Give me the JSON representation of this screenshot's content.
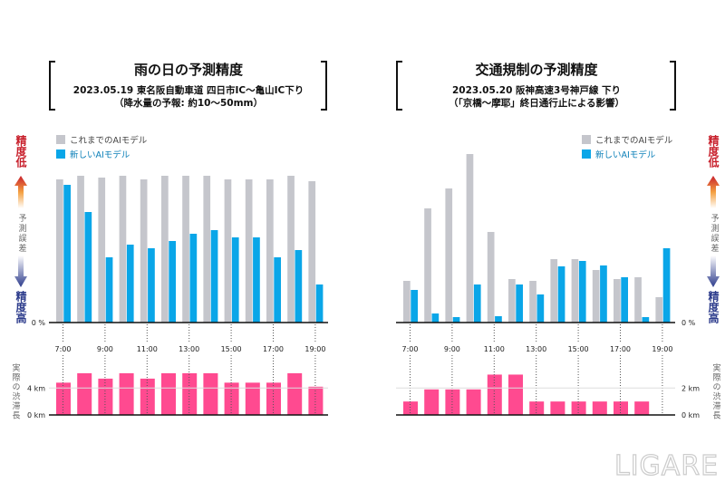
{
  "colors": {
    "old": "#c5c6cc",
    "new": "#0aa6e8",
    "congestion": "#ff4a90",
    "low": "#c8202c",
    "high": "#2d3c8c"
  },
  "side_labels": {
    "low": "精度低",
    "error": "予測誤差",
    "high": "精度高",
    "congestion": "実際の渋滞長"
  },
  "logo": "LIGARE",
  "chart_data": [
    {
      "type": "bar",
      "title": "雨の日の予測精度",
      "subtitle": [
        "2023.05.19 東名阪自動車道 四日市IC〜亀山IC下り",
        "（降水量の予報: 約10〜50mm）"
      ],
      "legend": [
        "これまでのAIモデル",
        "新しいAIモデル"
      ],
      "legend_position": "top-left",
      "categories": [
        "7:00",
        "8:00",
        "9:00",
        "10:00",
        "11:00",
        "12:00",
        "13:00",
        "14:00",
        "15:00",
        "16:00",
        "17:00",
        "18:00",
        "19:00"
      ],
      "tick_labels": [
        "7:00",
        "9:00",
        "11:00",
        "13:00",
        "15:00",
        "17:00",
        "19:00"
      ],
      "y_zero_label": "0 %",
      "series": [
        {
          "name": "これまでのAIモデル",
          "values": [
            79,
            81,
            80,
            81,
            79,
            81,
            81,
            81,
            79,
            79,
            79,
            81,
            78
          ]
        },
        {
          "name": "新しいAIモデル",
          "values": [
            76,
            61,
            36,
            43,
            41,
            45,
            49,
            51,
            47,
            47,
            36,
            40,
            21
          ]
        }
      ],
      "ylim": [
        0,
        100
      ],
      "congestion": {
        "unit": "km",
        "ticks": [
          "0 km",
          "4 km"
        ],
        "tick_values": [
          0,
          4
        ],
        "ylim": [
          0,
          8
        ],
        "values": [
          4.8,
          6.2,
          5.4,
          6.2,
          5.4,
          6.2,
          6.2,
          6.2,
          4.8,
          4.8,
          4.8,
          6.2,
          4.2
        ]
      }
    },
    {
      "type": "bar",
      "title": "交通規制の予測精度",
      "subtitle": [
        "2023.05.20 阪神高速3号神戸線 下り",
        "（「京橋〜摩耶」終日通行止による影響）"
      ],
      "legend": [
        "これまでのAIモデル",
        "新しいAIモデル"
      ],
      "legend_position": "top-right",
      "categories": [
        "7:00",
        "8:00",
        "9:00",
        "10:00",
        "11:00",
        "12:00",
        "13:00",
        "14:00",
        "15:00",
        "16:00",
        "17:00",
        "18:00",
        "19:00"
      ],
      "tick_labels": [
        "7:00",
        "9:00",
        "11:00",
        "13:00",
        "15:00",
        "17:00",
        "19:00"
      ],
      "y_zero_label": "0 %",
      "series": [
        {
          "name": "これまでのAIモデル",
          "values": [
            23,
            63,
            74,
            93,
            50,
            24,
            23,
            35,
            35,
            29,
            24,
            25,
            14
          ]
        },
        {
          "name": "新しいAIモデル",
          "values": [
            18,
            5,
            3,
            21,
            3.5,
            21,
            15.5,
            31,
            34,
            31.5,
            25,
            3,
            41
          ]
        }
      ],
      "ylim": [
        0,
        100
      ],
      "congestion": {
        "unit": "km",
        "ticks": [
          "0 km",
          "2 km"
        ],
        "tick_values": [
          0,
          2
        ],
        "ylim": [
          0,
          4
        ],
        "values": [
          1.0,
          1.9,
          1.9,
          1.9,
          3.0,
          3.0,
          1.0,
          1.0,
          1.0,
          1.0,
          1.0,
          1.0,
          0
        ]
      }
    }
  ]
}
